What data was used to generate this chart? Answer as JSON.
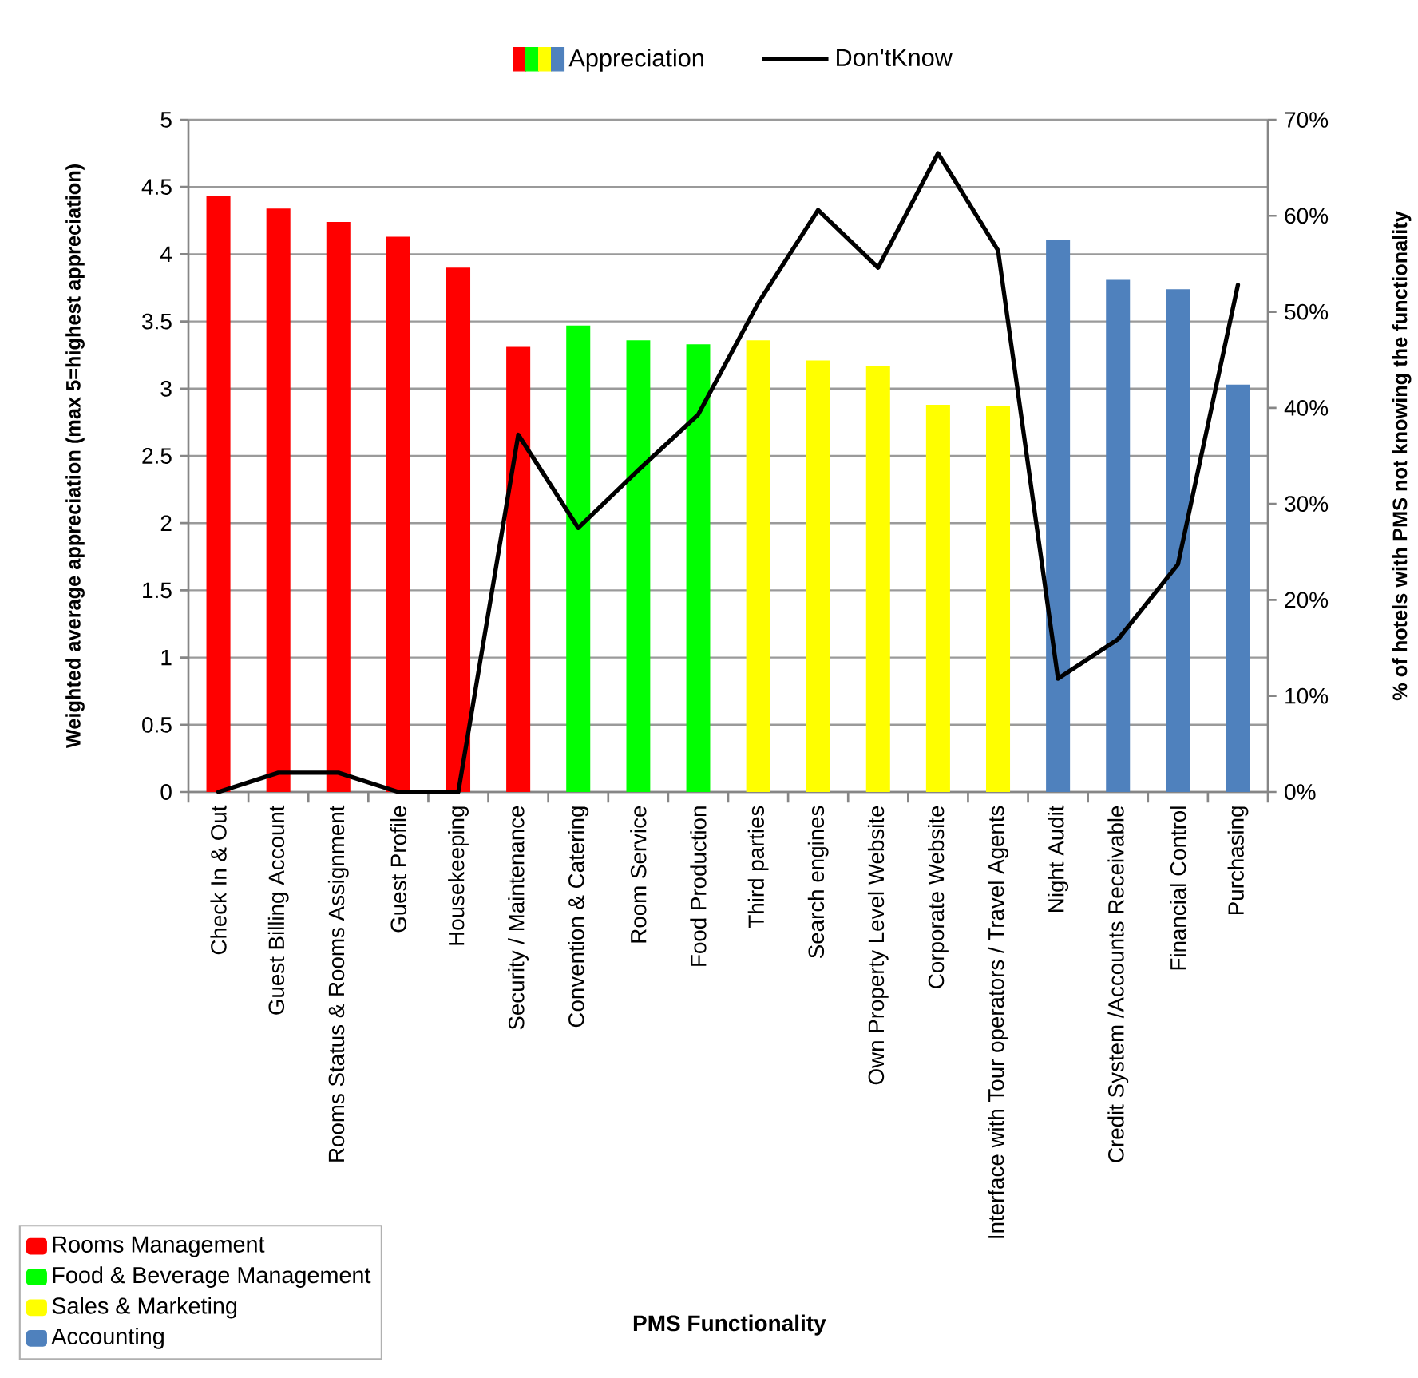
{
  "chart_data": {
    "type": "bar",
    "categories": [
      "Check In & Out",
      "Guest Billing Account",
      "Rooms Status & Rooms Assignment",
      "Guest Profile",
      "Housekeeping",
      "Security / Maintenance",
      "Convention & Catering",
      "Room Service",
      "Food Production",
      "Third parties",
      "Search engines",
      "Own Property Level Website",
      "Corporate Website",
      "Interface with Tour operators / Travel Agents",
      "Night Audit",
      "Credit System /Accounts Receivable",
      "Financial Control",
      "Purchasing"
    ],
    "series": [
      {
        "name": "Appreciation",
        "colors": [
          "#ff0000",
          "#ff0000",
          "#ff0000",
          "#ff0000",
          "#ff0000",
          "#ff0000",
          "#00ff00",
          "#00ff00",
          "#00ff00",
          "#ffff00",
          "#ffff00",
          "#ffff00",
          "#ffff00",
          "#ffff00",
          "#4f81bd",
          "#4f81bd",
          "#4f81bd",
          "#4f81bd"
        ],
        "values": [
          4.43,
          4.34,
          4.24,
          4.13,
          3.9,
          3.31,
          3.47,
          3.36,
          3.33,
          3.36,
          3.21,
          3.17,
          2.88,
          2.87,
          4.11,
          3.81,
          3.74,
          3.03
        ]
      },
      {
        "name": "Don'tKnow",
        "type": "line",
        "axis": "y2",
        "color": "#000000",
        "values": [
          0,
          2,
          2,
          0,
          0,
          37.2,
          27.5,
          33.5,
          39.3,
          50.9,
          60.6,
          54.6,
          66.5,
          56.4,
          11.8,
          15.9,
          23.7,
          52.8
        ]
      }
    ],
    "xlabel": "PMS Functionality",
    "ylabel": "Weighted average appreciation (max 5=highest appreciation)",
    "y2label": "% of hotels with PMS not knowing the functionality",
    "ylim": [
      0,
      5
    ],
    "yticks": [
      0,
      0.5,
      1,
      1.5,
      2,
      2.5,
      3,
      3.5,
      4,
      4.5,
      5
    ],
    "y2lim": [
      0,
      70
    ],
    "y2ticks": [
      {
        "value": 0,
        "label": "0%"
      },
      {
        "value": 10,
        "label": "10%"
      },
      {
        "value": 20,
        "label": "20%"
      },
      {
        "value": 30,
        "label": "30%"
      },
      {
        "value": 40,
        "label": "40%"
      },
      {
        "value": 50,
        "label": "50%"
      },
      {
        "value": 60,
        "label": "60%"
      },
      {
        "value": 70,
        "label": "70%"
      }
    ],
    "annotations": [
      "Rooms Management",
      "Food & Beverage Management",
      "Sales & Marketing",
      "Accounting"
    ],
    "grid": "y",
    "legend": "top"
  }
}
